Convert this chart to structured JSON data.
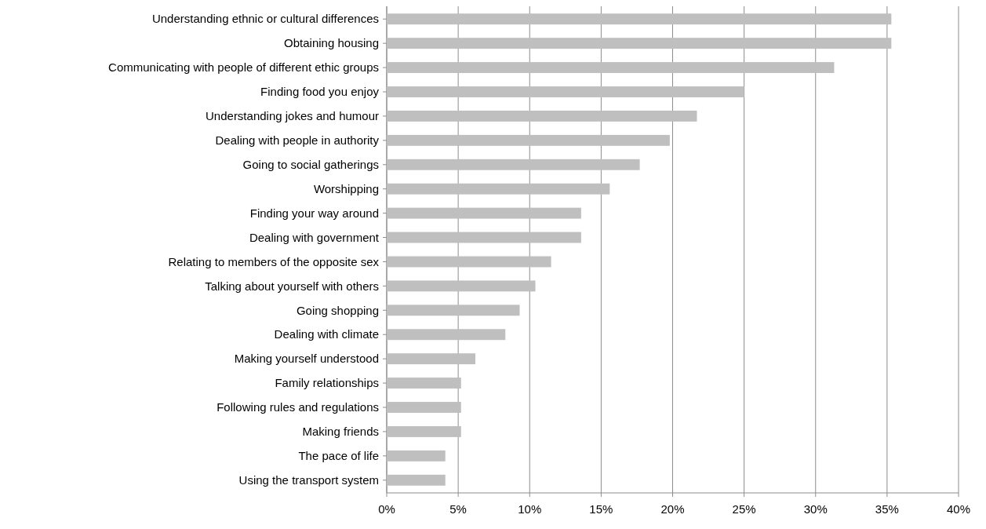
{
  "chart_data": {
    "type": "bar",
    "orientation": "horizontal",
    "categories": [
      "Understanding ethnic or cultural differences",
      "Obtaining housing",
      "Communicating with people of different ethic groups",
      "Finding food you enjoy",
      "Understanding jokes and humour",
      "Dealing with people in authority",
      "Going to social gatherings",
      "Worshipping",
      "Finding your way around",
      "Dealing with government",
      "Relating to members of the opposite sex",
      "Talking about yourself with others",
      "Going shopping",
      "Dealing with climate",
      "Making yourself understood",
      "Family relationships",
      "Following rules and regulations",
      "Making friends",
      "The pace of life",
      "Using the transport system"
    ],
    "values": [
      35.3,
      35.3,
      31.3,
      25.0,
      21.7,
      19.8,
      17.7,
      15.6,
      13.6,
      13.6,
      11.5,
      10.4,
      9.3,
      8.3,
      6.2,
      5.2,
      5.2,
      5.2,
      4.1,
      4.1
    ],
    "color": "#bfbfbf",
    "xlim": [
      0,
      40
    ],
    "xticks": [
      {
        "value": 0,
        "label": "0%"
      },
      {
        "value": 5,
        "label": "5%"
      },
      {
        "value": 10,
        "label": "10%"
      },
      {
        "value": 15,
        "label": "15%"
      },
      {
        "value": 20,
        "label": "20%"
      },
      {
        "value": 25,
        "label": "25%"
      },
      {
        "value": 30,
        "label": "30%"
      },
      {
        "value": 35,
        "label": "35%"
      },
      {
        "value": 40,
        "label": "40%"
      }
    ],
    "grid": "x"
  }
}
